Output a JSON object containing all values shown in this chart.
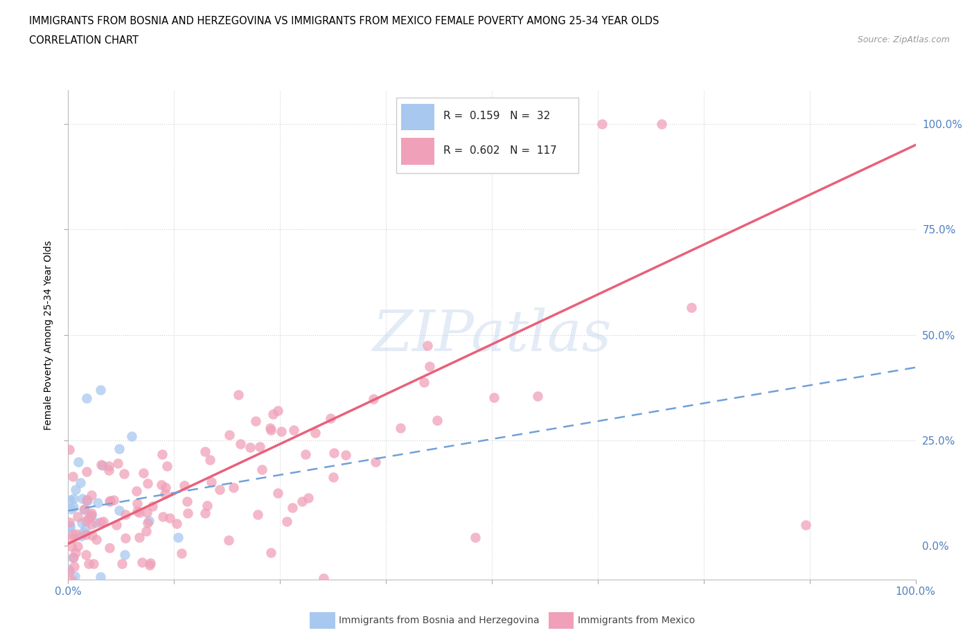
{
  "title_line1": "IMMIGRANTS FROM BOSNIA AND HERZEGOVINA VS IMMIGRANTS FROM MEXICO FEMALE POVERTY AMONG 25-34 YEAR OLDS",
  "title_line2": "CORRELATION CHART",
  "source_text": "Source: ZipAtlas.com",
  "ylabel": "Female Poverty Among 25-34 Year Olds",
  "watermark": "ZIPatlas",
  "bosnia_R": 0.159,
  "bosnia_N": 32,
  "mexico_R": 0.602,
  "mexico_N": 117,
  "bosnia_color": "#a8c8f0",
  "mexico_color": "#f0a0b8",
  "bosnia_line_color": "#70a0d8",
  "mexico_line_color": "#e8607a",
  "background_color": "#ffffff",
  "grid_color": "#d0d0d0",
  "tick_label_color": "#5080c0",
  "title_fontsize": 11,
  "axis_label_fontsize": 10,
  "xlim": [
    0.0,
    1.0
  ],
  "ylim": [
    -0.08,
    1.08
  ]
}
